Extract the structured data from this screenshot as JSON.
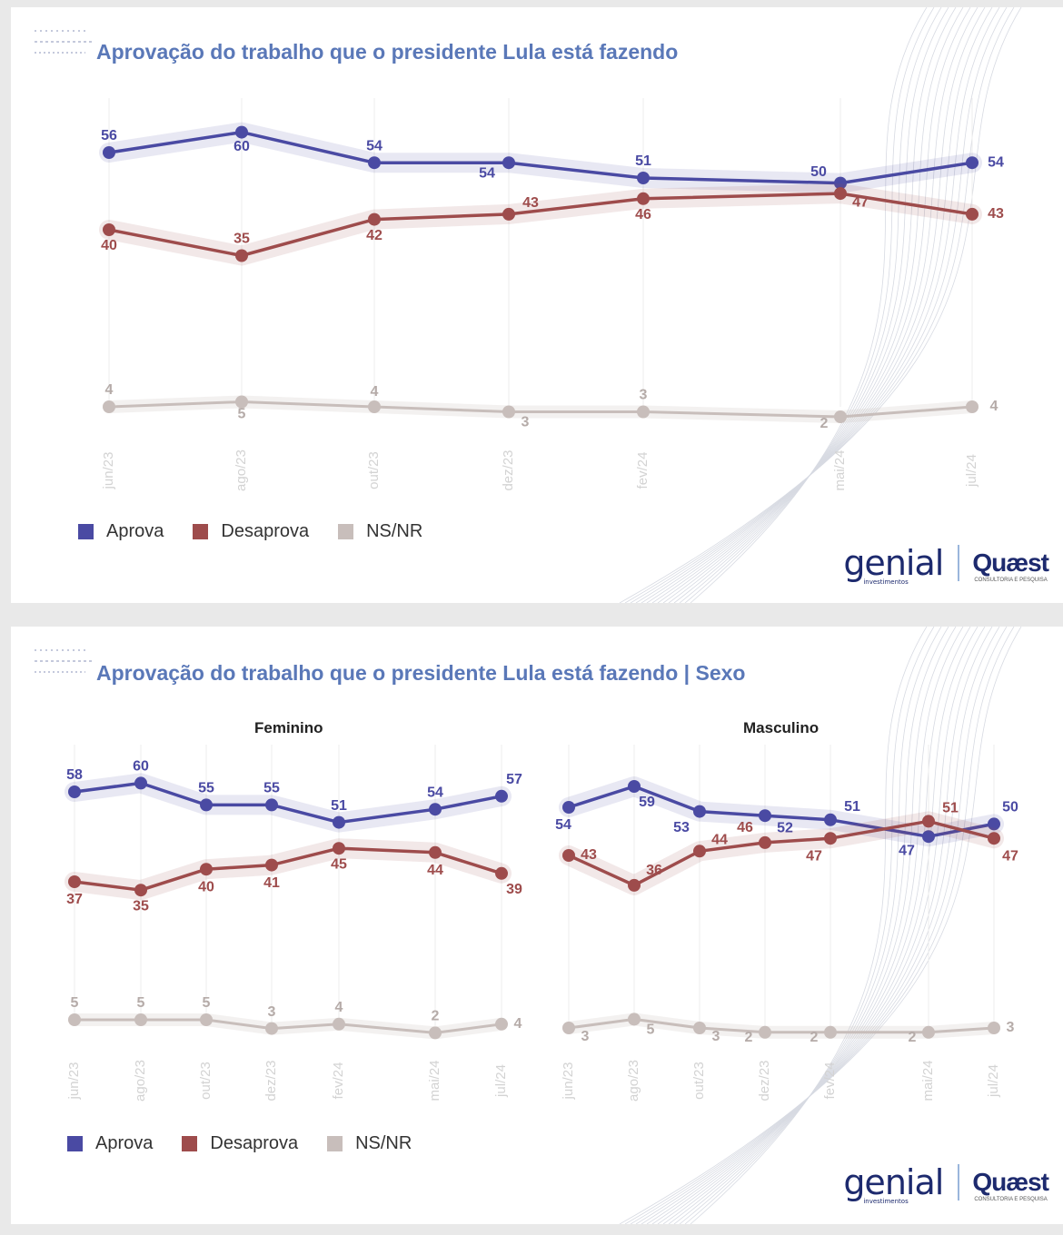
{
  "colors": {
    "aprova": "#4a4aa3",
    "desaprova": "#9e4c4c",
    "nsnr": "#c8bebb",
    "title": "#5a78b8"
  },
  "legend": {
    "aprova": "Aprova",
    "desaprova": "Desaprova",
    "nsnr": "NS/NR"
  },
  "brand": {
    "genial": "genial",
    "genial_sub": "investimentos",
    "quaest": "Quæst",
    "quaest_sub": "CONSULTORIA E PESQUISA"
  },
  "panels": [
    {
      "title": "Aprovação do trabalho que o presidente Lula está fazendo"
    },
    {
      "title": "Aprovação do trabalho que o presidente Lula está fazendo | Sexo"
    }
  ],
  "chart_data": [
    {
      "type": "line",
      "title": "Aprovação do trabalho que o presidente Lula está fazendo",
      "x": [
        "jun/23",
        "ago/23",
        "out/23",
        "dez/23",
        "fev/24",
        "mai/24",
        "jul/24"
      ],
      "series": [
        {
          "name": "Aprova",
          "values": [
            56,
            60,
            54,
            54,
            51,
            50,
            54
          ]
        },
        {
          "name": "Desaprova",
          "values": [
            40,
            35,
            42,
            43,
            46,
            47,
            43
          ]
        },
        {
          "name": "NS/NR",
          "values": [
            4,
            5,
            4,
            3,
            3,
            2,
            4
          ]
        }
      ]
    },
    {
      "type": "line",
      "title": "Feminino",
      "x": [
        "jun/23",
        "ago/23",
        "out/23",
        "dez/23",
        "fev/24",
        "mai/24",
        "jul/24"
      ],
      "series": [
        {
          "name": "Aprova",
          "values": [
            58,
            60,
            55,
            55,
            51,
            54,
            57
          ]
        },
        {
          "name": "Desaprova",
          "values": [
            37,
            35,
            40,
            41,
            45,
            44,
            39
          ]
        },
        {
          "name": "NS/NR",
          "values": [
            5,
            5,
            5,
            3,
            4,
            2,
            4
          ]
        }
      ]
    },
    {
      "type": "line",
      "title": "Masculino",
      "x": [
        "jun/23",
        "ago/23",
        "out/23",
        "dez/23",
        "fev/24",
        "mai/24",
        "jul/24"
      ],
      "series": [
        {
          "name": "Aprova",
          "values": [
            54,
            59,
            53,
            52,
            51,
            47,
            50
          ]
        },
        {
          "name": "Desaprova",
          "values": [
            43,
            36,
            44,
            46,
            47,
            51,
            47
          ]
        },
        {
          "name": "NS/NR",
          "values": [
            3,
            5,
            3,
            2,
            2,
            2,
            3
          ]
        }
      ]
    }
  ]
}
